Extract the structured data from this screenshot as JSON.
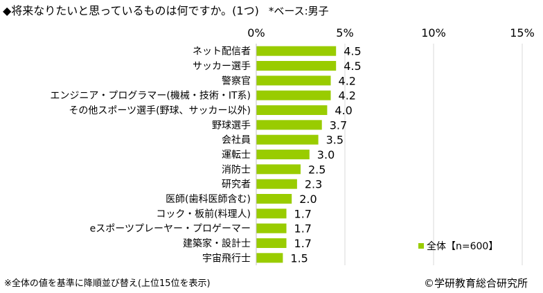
{
  "header": {
    "title": "◆将来なりたいと思っているものは何ですか。(1つ)",
    "base": "*ベース:男子"
  },
  "chart_data": {
    "type": "bar",
    "orientation": "horizontal",
    "categories": [
      "ネット配信者",
      "サッカー選手",
      "警察官",
      "エンジニア・プログラマー(機械・技術・IT系)",
      "その他スポーツ選手(野球、サッカー以外)",
      "野球選手",
      "会社員",
      "運転士",
      "消防士",
      "研究者",
      "医師(歯科医師含む)",
      "コック・板前(料理人)",
      "eスポーツプレーヤー・プロゲーマー",
      "建築家・設計士",
      "宇宙飛行士"
    ],
    "series": [
      {
        "name": "全体【n=600】",
        "values": [
          4.5,
          4.5,
          4.2,
          4.2,
          4.0,
          3.7,
          3.5,
          3.0,
          2.5,
          2.3,
          2.0,
          1.7,
          1.7,
          1.7,
          1.5
        ],
        "labels": [
          "4.5",
          "4.5",
          "4.2",
          "4.2",
          "4.0",
          "3.7",
          "3.5",
          "3.0",
          "2.5",
          "2.3",
          "2.0",
          "1.7",
          "1.7",
          "1.7",
          "1.5"
        ]
      }
    ],
    "xlim": [
      0,
      15
    ],
    "ticks": [
      0,
      5,
      10,
      15
    ],
    "tick_labels": [
      "0%",
      "5%",
      "10%",
      "15%"
    ],
    "grid": true,
    "legend_position": "bottom-right",
    "bar_color": "#99cc00",
    "grid_color": "#d9d9d9"
  },
  "footer": {
    "note": "※全体の値を基準に降順並び替え(上位15位を表示)",
    "copyright": "©学研教育総合研究所"
  }
}
